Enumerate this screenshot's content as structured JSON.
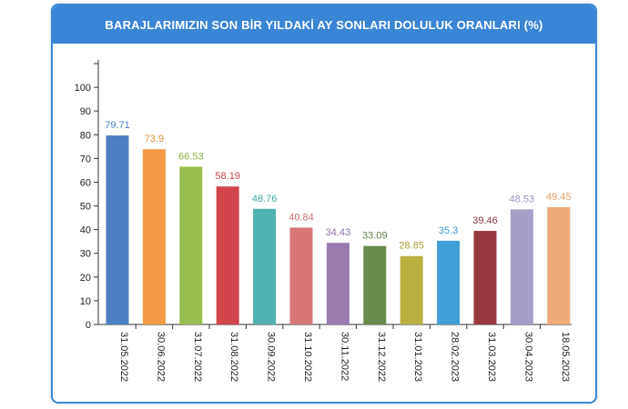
{
  "chart_data": {
    "type": "bar",
    "title": "BARAJLARIMIZIN SON BİR YILDAKİ AY SONLARI DOLULUK ORANLARI (%)",
    "categories": [
      "31.05.2022",
      "30.06.2022",
      "31.07.2022",
      "31.08.2022",
      "30.09.2022",
      "31.10.2022",
      "30.11.2022",
      "31.12.2022",
      "31.01.2023",
      "28.02.2023",
      "31.03.2023",
      "30.04.2023",
      "18.05.2023"
    ],
    "values": [
      79.71,
      73.9,
      66.53,
      58.19,
      48.76,
      40.84,
      34.43,
      33.09,
      28.85,
      35.3,
      39.46,
      48.53,
      49.45
    ],
    "value_labels": [
      "79.71",
      "73.9",
      "66.53",
      "58.19",
      "48.76",
      "40.84",
      "34.43",
      "33.09",
      "28.85",
      "35.3",
      "39.46",
      "48.53",
      "49.45"
    ],
    "colors": [
      "#4d80c3",
      "#f29a45",
      "#98be4d",
      "#d3454d",
      "#4fb3b0",
      "#d9767a",
      "#9a7bb0",
      "#6a8a4e",
      "#b9b040",
      "#3f9fd6",
      "#97393f",
      "#a79ec8",
      "#eeaa78"
    ],
    "label_colors": [
      "#4d80c3",
      "#e0923e",
      "#8cb043",
      "#c8424a",
      "#46a8a5",
      "#cf6f73",
      "#8d72a4",
      "#5f7f45",
      "#aaa23a",
      "#3a96cc",
      "#8c363c",
      "#9990c0",
      "#e89c67"
    ],
    "yticks": [
      0,
      10,
      20,
      30,
      40,
      50,
      60,
      70,
      80,
      90,
      100
    ],
    "ylim": [
      0,
      110
    ],
    "xlabel": "",
    "ylabel": "",
    "grid": false
  }
}
